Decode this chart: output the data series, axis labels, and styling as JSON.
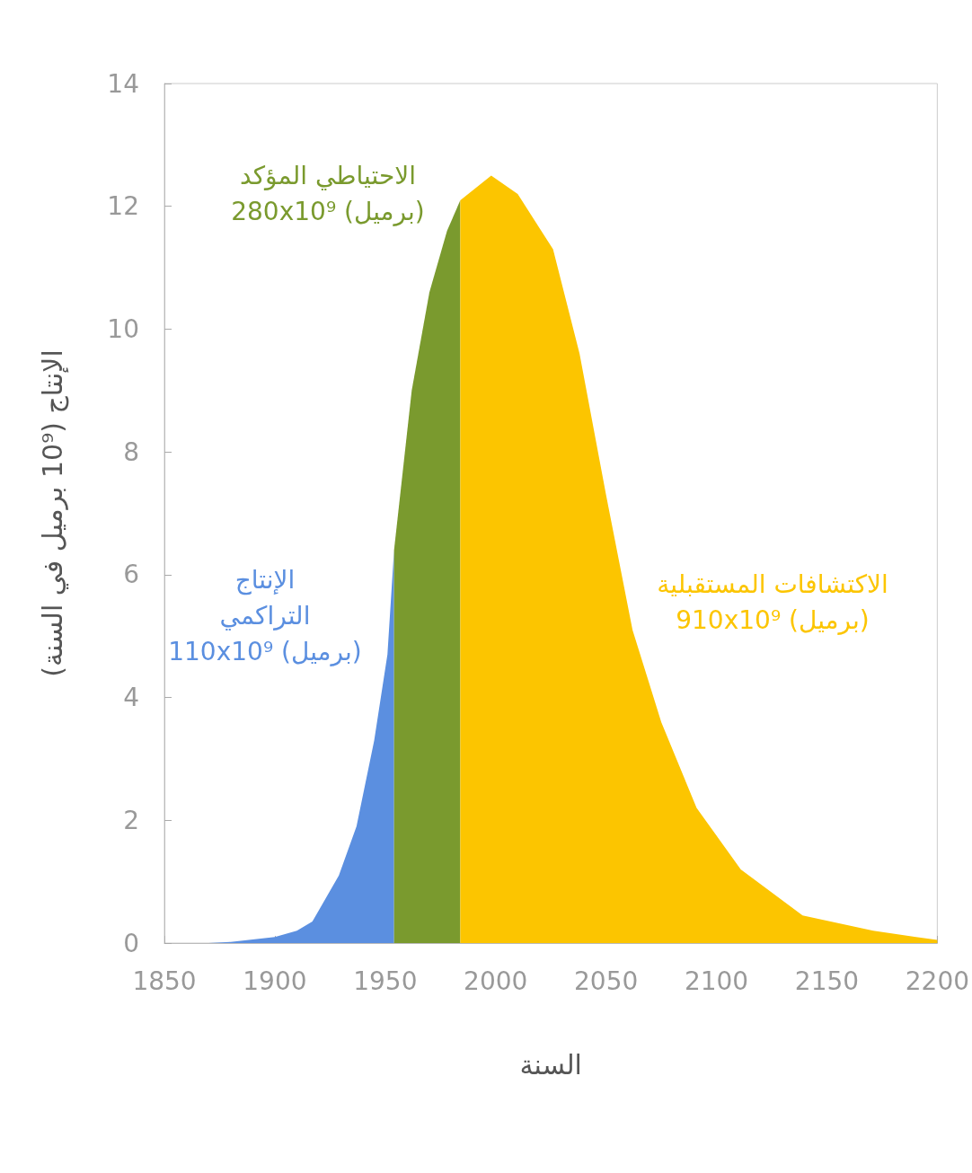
{
  "chart_data": {
    "type": "area",
    "xlabel": "السنة",
    "ylabel": "الإنتاج (10⁹ برميل في السنة)",
    "xlim": [
      1850,
      2200
    ],
    "xticks": [
      1850,
      1900,
      1950,
      2000,
      2050,
      2100,
      2150,
      2200
    ],
    "ylim": [
      0,
      14
    ],
    "yticks": [
      0,
      2,
      4,
      6,
      8,
      10,
      12,
      14
    ],
    "grid": false,
    "marker": "none",
    "series": [
      {
        "color": "#5b8fe0",
        "x": [
          1870,
          1880,
          1900,
          1910,
          1917,
          1929,
          1937,
          1945,
          1951,
          1954
        ],
        "values": [
          0,
          0.02,
          0.1,
          0.2,
          0.35,
          1.1,
          1.9,
          3.3,
          4.7,
          6.4
        ]
      },
      {
        "color": "#7a9a2e",
        "x": [
          1954,
          1962,
          1970,
          1978,
          1984
        ],
        "values": [
          6.4,
          9.0,
          10.6,
          11.6,
          12.1
        ]
      },
      {
        "color": "#fcc500",
        "x": [
          1984,
          1998,
          2010,
          2026,
          2038,
          2050,
          2062,
          2075,
          2091,
          2111,
          2139,
          2171,
          2200
        ],
        "values": [
          12.1,
          12.5,
          12.2,
          11.3,
          9.6,
          7.3,
          5.1,
          3.6,
          2.2,
          1.2,
          0.45,
          0.2,
          0.05
        ]
      }
    ],
    "annotations": [
      "الإنتاج\nالتراكمي\n110x10⁹ (برميل)",
      "الاحتياطي المؤكد\n280x10⁹ (برميل)",
      "الاكتشافات المستقبلية\n910x10⁹ (برميل)"
    ]
  }
}
